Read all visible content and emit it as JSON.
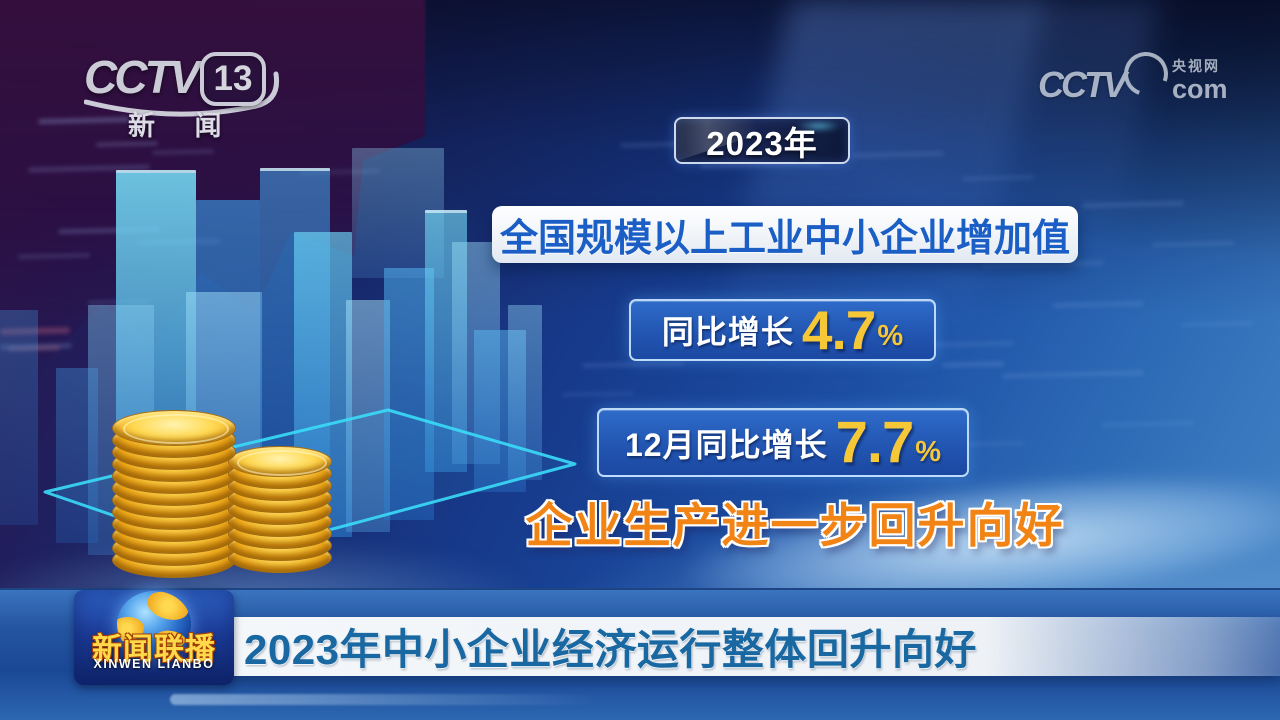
{
  "channel_bug": {
    "network": "CCTV",
    "channel_number": "13",
    "channel_name_cn": "新 闻"
  },
  "watermark": {
    "network": "CCTV",
    "site_name_cn": "央视网",
    "site_domain": "com"
  },
  "infographic": {
    "year_label": "2023年",
    "title": "全国规模以上工业中小企业增加值",
    "stats": [
      {
        "label": "同比增长",
        "value": "4.7",
        "unit": "%"
      },
      {
        "label": "12月同比增长",
        "value": "7.7",
        "unit": "%"
      }
    ],
    "subtitle": "企业生产进一步回升向好"
  },
  "lower_third": {
    "badge": {
      "title_cn": "新闻联播",
      "title_latin": "XINWEN LIANBO",
      "icon": "globe-icon"
    },
    "headline": "2023年中小企业经济运行整体回升向好"
  },
  "colors": {
    "accent_gold": "#f6c838",
    "stat_box_blue": "#2256b2",
    "title_text_blue": "#1a5ec6",
    "headline_blue": "#1a68a2",
    "subtitle_orange": "#f18414",
    "platform_cyan": "#3adcf9",
    "badge_gold": "#ffd94a"
  },
  "decor": {
    "coin_stacks": [
      {
        "coins": 12
      },
      {
        "coins": 9
      }
    ]
  }
}
